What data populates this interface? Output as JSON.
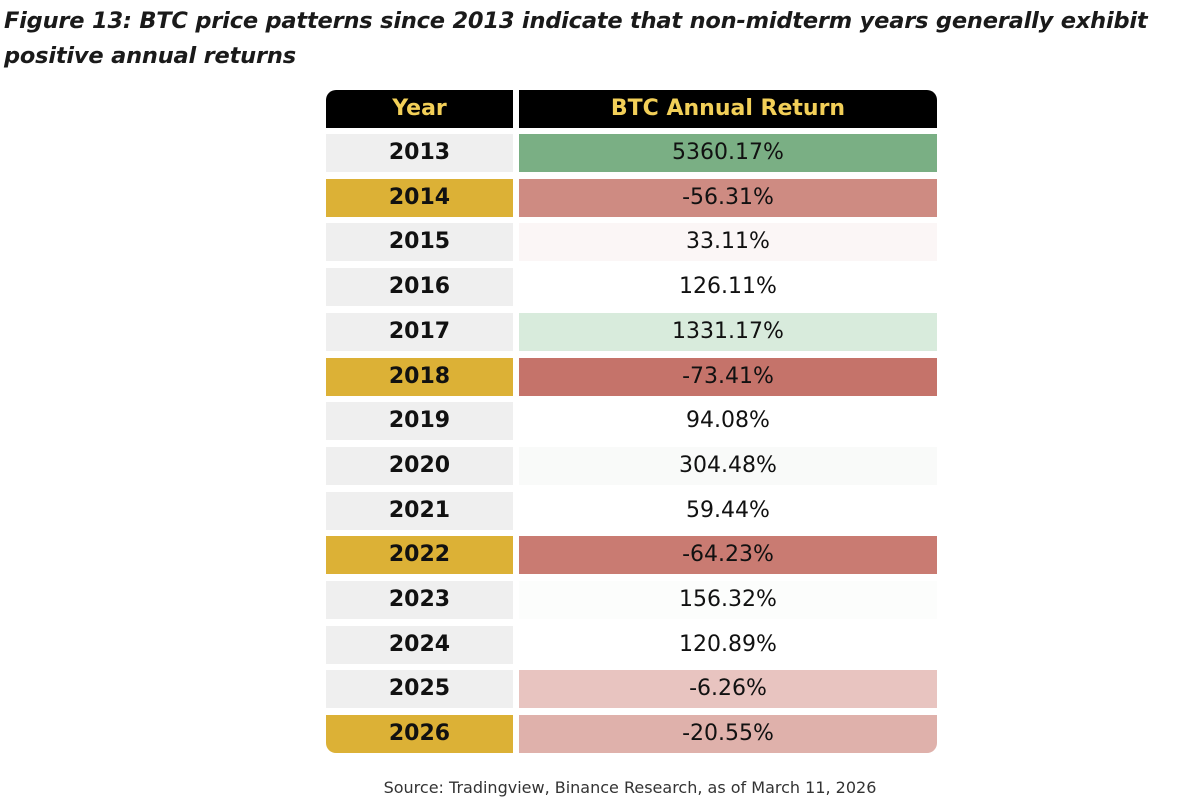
{
  "title": "Figure 13: BTC price patterns since 2013 indicate that non-midterm years generally exhibit positive annual returns",
  "source": "Source: Tradingview, Binance Research, as of March 11, 2026",
  "chart_data": {
    "type": "table",
    "title": "Figure 13: BTC price patterns since 2013 indicate that non-midterm years generally exhibit positive annual returns",
    "columns": [
      "Year",
      "BTC Annual Return"
    ],
    "rows": [
      {
        "year": "2013",
        "return": "5360.17%",
        "value": 5360.17,
        "midterm": false
      },
      {
        "year": "2014",
        "return": "-56.31%",
        "value": -56.31,
        "midterm": true
      },
      {
        "year": "2015",
        "return": "33.11%",
        "value": 33.11,
        "midterm": false
      },
      {
        "year": "2016",
        "return": "126.11%",
        "value": 126.11,
        "midterm": false
      },
      {
        "year": "2017",
        "return": "1331.17%",
        "value": 1331.17,
        "midterm": false
      },
      {
        "year": "2018",
        "return": "-73.41%",
        "value": -73.41,
        "midterm": true
      },
      {
        "year": "2019",
        "return": "94.08%",
        "value": 94.08,
        "midterm": false
      },
      {
        "year": "2020",
        "return": "304.48%",
        "value": 304.48,
        "midterm": false
      },
      {
        "year": "2021",
        "return": "59.44%",
        "value": 59.44,
        "midterm": false
      },
      {
        "year": "2022",
        "return": "-64.23%",
        "value": -64.23,
        "midterm": true
      },
      {
        "year": "2023",
        "return": "156.32%",
        "value": 156.32,
        "midterm": false
      },
      {
        "year": "2024",
        "return": "120.89%",
        "value": 120.89,
        "midterm": false
      },
      {
        "year": "2025",
        "return": "-6.26%",
        "value": -6.26,
        "midterm": false
      },
      {
        "year": "2026",
        "return": "-20.55%",
        "value": -20.55,
        "midterm": true
      }
    ],
    "colors": {
      "header_bg": "#000000",
      "header_text": "#f2cf58",
      "year_default_bg": "#efefef",
      "year_midterm_bg": "#dcb136",
      "return_bg": {
        "2013": "#7aaf84",
        "2014": "#ce8b82",
        "2015": "#fbf6f6",
        "2016": "#ffffff",
        "2017": "#d8ebdc",
        "2018": "#c5736a",
        "2019": "#ffffff",
        "2020": "#f9faf9",
        "2021": "#ffffff",
        "2022": "#c97b72",
        "2023": "#fcfdfc",
        "2024": "#ffffff",
        "2025": "#e8c4c0",
        "2026": "#dfb1ab"
      }
    }
  }
}
